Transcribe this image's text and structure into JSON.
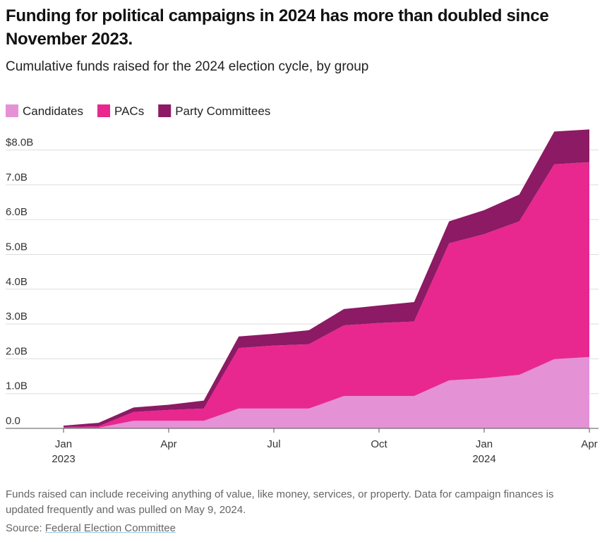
{
  "chart_data": {
    "type": "stacked_area",
    "title": "Funding for political campaigns in 2024 has more than doubled since November 2023.",
    "subtitle": "Cumulative funds raised for the 2024 election cycle, by group",
    "x": [
      "2023-01",
      "2023-02",
      "2023-03",
      "2023-04",
      "2023-05",
      "2023-06",
      "2023-07",
      "2023-08",
      "2023-09",
      "2023-10",
      "2023-11",
      "2023-12",
      "2024-01",
      "2024-02",
      "2024-03",
      "2024-04"
    ],
    "series": [
      {
        "name": "Candidates",
        "color": "#e591d6",
        "values": [
          0.02,
          0.02,
          0.22,
          0.22,
          0.22,
          0.57,
          0.57,
          0.57,
          0.93,
          0.93,
          0.93,
          1.38,
          1.44,
          1.54,
          1.99,
          2.05
        ]
      },
      {
        "name": "PACs",
        "color": "#e8288e",
        "values": [
          0.02,
          0.04,
          0.25,
          0.31,
          0.35,
          1.74,
          1.81,
          1.85,
          2.03,
          2.1,
          2.14,
          3.94,
          4.14,
          4.41,
          5.6,
          5.6
        ]
      },
      {
        "name": "Party Committees",
        "color": "#8c1a64",
        "values": [
          0.04,
          0.1,
          0.13,
          0.15,
          0.23,
          0.33,
          0.34,
          0.4,
          0.47,
          0.5,
          0.56,
          0.63,
          0.69,
          0.77,
          0.94,
          0.94
        ]
      }
    ],
    "xlim": [
      "2023-01",
      "2024-04"
    ],
    "xticks": [
      {
        "value": "2023-01",
        "label": "Jan",
        "year": "2023"
      },
      {
        "value": "2023-04",
        "label": "Apr"
      },
      {
        "value": "2023-07",
        "label": "Jul"
      },
      {
        "value": "2023-10",
        "label": "Oct"
      },
      {
        "value": "2024-01",
        "label": "Jan",
        "year": "2024"
      },
      {
        "value": "2024-04",
        "label": "Apr"
      }
    ],
    "ylim": [
      0,
      8.7
    ],
    "yticks": [
      {
        "value": 0,
        "label": "0.0"
      },
      {
        "value": 1,
        "label": "1.0B"
      },
      {
        "value": 2,
        "label": "2.0B"
      },
      {
        "value": 3,
        "label": "3.0B"
      },
      {
        "value": 4,
        "label": "4.0B"
      },
      {
        "value": 5,
        "label": "5.0B"
      },
      {
        "value": 6,
        "label": "6.0B"
      },
      {
        "value": 7,
        "label": "7.0B"
      },
      {
        "value": 8,
        "label": "$8.0B"
      }
    ],
    "grid": true,
    "footnote": "Funds raised can include receiving anything of value, like money, services, or property. Data for campaign finances is updated frequently and was pulled on May 9, 2024.",
    "source_label": "Source:",
    "source_link": "Federal Election Committee"
  }
}
